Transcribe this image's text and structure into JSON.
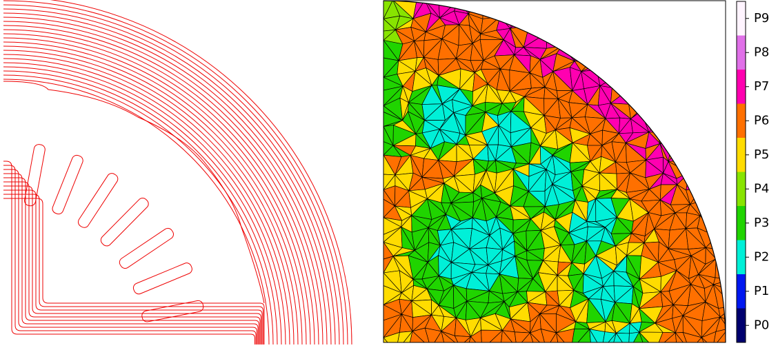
{
  "colorbar": {
    "labels": [
      "P0",
      "P1",
      "P2",
      "P3",
      "P4",
      "P5",
      "P6",
      "P7",
      "P8",
      "P9"
    ],
    "colors": [
      "#00006e",
      "#0018f0",
      "#00f0d8",
      "#20d400",
      "#88e400",
      "#ffdc00",
      "#ff7000",
      "#ff00b0",
      "#e070e8",
      "#fff4ff"
    ]
  }
}
